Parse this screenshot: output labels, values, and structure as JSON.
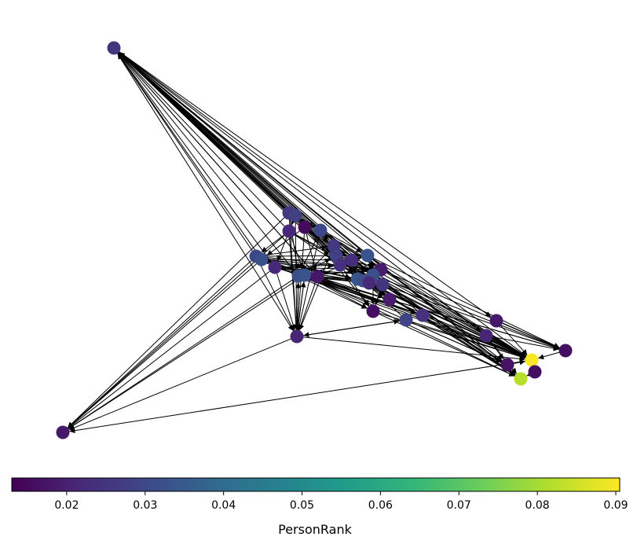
{
  "figure": {
    "type": "network-graph",
    "directed": true,
    "node_count": 45,
    "node_color_metric": "PersonRank"
  },
  "colorbar": {
    "label": "PersonRank",
    "colormap": "viridis",
    "min": 0.013,
    "max": 0.0905,
    "ticks": [
      {
        "value": 0.02,
        "label": "0.02"
      },
      {
        "value": 0.03,
        "label": "0.03"
      },
      {
        "value": 0.04,
        "label": "0.04"
      },
      {
        "value": 0.05,
        "label": "0.05"
      },
      {
        "value": 0.06,
        "label": "0.06"
      },
      {
        "value": 0.07,
        "label": "0.07"
      },
      {
        "value": 0.08,
        "label": "0.08"
      },
      {
        "value": 0.09,
        "label": "0.09"
      }
    ]
  },
  "colors": {
    "edge": "#000000",
    "background": "#ffffff",
    "viridis_stops": [
      "#440154",
      "#482878",
      "#3e4989",
      "#31688e",
      "#26828e",
      "#1f9e89",
      "#35b779",
      "#6ece58",
      "#b5de2b",
      "#fde725"
    ]
  }
}
